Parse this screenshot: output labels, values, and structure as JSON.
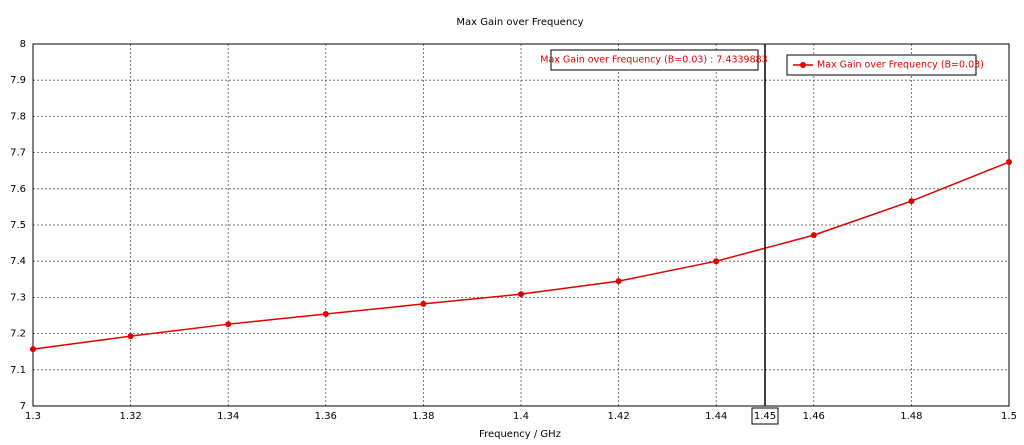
{
  "chart_data": {
    "type": "line",
    "title": "Max Gain over Frequency",
    "x_label": "Frequency / GHz",
    "x": [
      1.3,
      1.32,
      1.34,
      1.36,
      1.38,
      1.4,
      1.42,
      1.44,
      1.46,
      1.48,
      1.5
    ],
    "series": [
      {
        "name": "Max Gain over Frequency (B=0.03)",
        "color": "#e00000",
        "values": [
          7.157,
          7.193,
          7.226,
          7.254,
          7.282,
          7.309,
          7.345,
          7.4,
          7.472,
          7.566,
          7.674
        ]
      }
    ],
    "xlim": [
      1.3,
      1.5
    ],
    "xticks": [
      1.3,
      1.32,
      1.34,
      1.36,
      1.38,
      1.4,
      1.42,
      1.44,
      1.46,
      1.48,
      1.5
    ],
    "ylim": [
      7,
      8
    ],
    "yticks": [
      7,
      7.1,
      7.2,
      7.3,
      7.4,
      7.5,
      7.6,
      7.7,
      7.8,
      7.9,
      8
    ],
    "grid": true,
    "legend": "top-right",
    "marker": {
      "x": 1.45,
      "label": "Max Gain over Frequency (B=0.03) : 7.4339883"
    }
  }
}
